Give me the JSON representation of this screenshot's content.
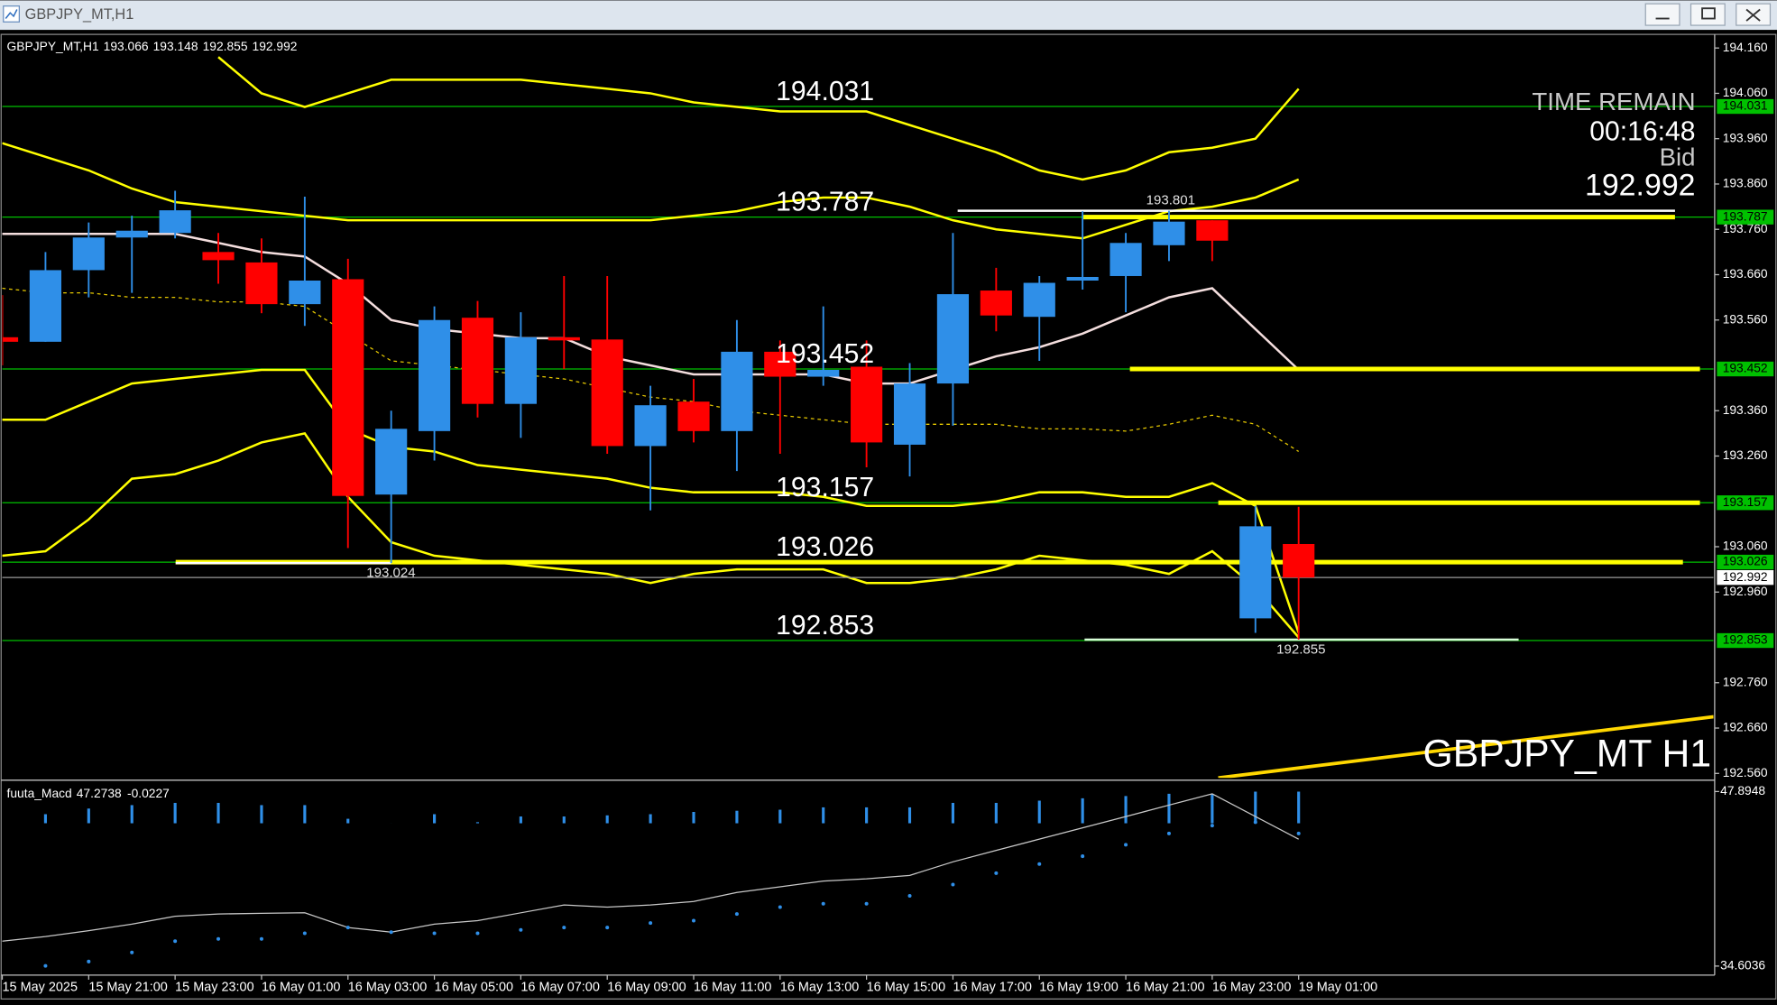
{
  "window": {
    "title": "GBPJPY_MT,H1"
  },
  "chart_data": {
    "type": "candlestick",
    "info": {
      "symbol": "GBPJPY_MT,H1",
      "open": 193.066,
      "high": 193.148,
      "low": 192.855,
      "close": 192.992
    },
    "categories": [
      "15 May 2025",
      null,
      "15 May 21:00",
      null,
      "15 May 23:00",
      null,
      "16 May 01:00",
      null,
      "16 May 03:00",
      null,
      "16 May 05:00",
      null,
      "16 May 07:00",
      null,
      "16 May 09:00",
      null,
      "16 May 11:00",
      null,
      "16 May 13:00",
      null,
      "16 May 15:00",
      null,
      "16 May 17:00",
      null,
      "16 May 19:00",
      null,
      "16 May 21:00",
      null,
      "16 May 23:00",
      null,
      "19 May 01:00"
    ],
    "open": [
      193.522,
      193.512,
      193.67,
      193.742,
      193.752,
      193.71,
      193.687,
      193.595,
      193.65,
      193.175,
      193.315,
      193.565,
      193.375,
      193.522,
      193.517,
      193.282,
      193.38,
      193.315,
      193.49,
      193.435,
      193.457,
      193.285,
      193.42,
      193.625,
      193.567,
      193.647,
      193.657,
      193.725,
      193.78,
      192.902,
      193.066
    ],
    "high": [
      193.615,
      193.71,
      193.775,
      193.79,
      193.845,
      193.752,
      193.74,
      193.832,
      193.695,
      193.36,
      193.59,
      193.602,
      193.577,
      193.657,
      193.657,
      193.415,
      193.43,
      193.56,
      193.515,
      193.59,
      193.515,
      193.465,
      193.752,
      193.675,
      193.657,
      193.8,
      193.752,
      193.801,
      193.78,
      193.15,
      193.148
    ],
    "low": [
      193.46,
      193.512,
      193.61,
      193.62,
      193.74,
      193.64,
      193.575,
      193.547,
      193.057,
      193.024,
      193.25,
      193.345,
      193.3,
      193.452,
      193.265,
      193.14,
      193.29,
      193.227,
      193.265,
      193.415,
      193.235,
      193.215,
      193.327,
      193.535,
      193.47,
      193.627,
      193.577,
      193.69,
      193.69,
      192.87,
      192.855
    ],
    "close": [
      193.512,
      193.67,
      193.742,
      193.757,
      193.802,
      193.692,
      193.595,
      193.647,
      193.172,
      193.32,
      193.56,
      193.375,
      193.522,
      193.515,
      193.282,
      193.372,
      193.315,
      193.49,
      193.435,
      193.45,
      193.29,
      193.42,
      193.617,
      193.57,
      193.642,
      193.655,
      193.73,
      193.777,
      193.735,
      193.105,
      192.992
    ],
    "up_color": "#2f8fe8",
    "down_color": "#ff0000",
    "ylim": [
      192.55,
      194.185
    ],
    "yticks": [
      {
        "value": 194.16,
        "label": "194.160"
      },
      {
        "value": 194.06,
        "label": "194.060"
      },
      {
        "value": 193.96,
        "label": "193.960"
      },
      {
        "value": 193.86,
        "label": "193.860"
      },
      {
        "value": 193.76,
        "label": "193.760"
      },
      {
        "value": 193.66,
        "label": "193.660"
      },
      {
        "value": 193.56,
        "label": "193.560"
      },
      {
        "value": 193.36,
        "label": "193.360"
      },
      {
        "value": 193.26,
        "label": "193.260"
      },
      {
        "value": 193.06,
        "label": "193.060"
      },
      {
        "value": 192.96,
        "label": "192.960"
      },
      {
        "value": 192.76,
        "label": "192.760"
      },
      {
        "value": 192.66,
        "label": "192.660"
      },
      {
        "value": 192.56,
        "label": "192.560"
      }
    ],
    "series": [
      {
        "color": "#ffff00",
        "values": [
          null,
          null,
          null,
          null,
          null,
          194.14,
          194.06,
          194.03,
          194.06,
          194.09,
          194.09,
          194.09,
          194.09,
          194.08,
          194.07,
          194.06,
          194.04,
          194.03,
          194.02,
          194.02,
          194.02,
          193.99,
          193.96,
          193.93,
          193.89,
          193.87,
          193.89,
          193.93,
          193.94,
          193.96,
          194.07
        ]
      },
      {
        "color": "#ffff00",
        "values": [
          193.95,
          193.92,
          193.89,
          193.85,
          193.82,
          193.81,
          193.8,
          193.79,
          193.78,
          193.78,
          193.78,
          193.78,
          193.78,
          193.78,
          193.78,
          193.78,
          193.79,
          193.8,
          193.82,
          193.83,
          193.83,
          193.81,
          193.78,
          193.76,
          193.75,
          193.74,
          193.77,
          193.8,
          193.81,
          193.83,
          193.87
        ]
      },
      {
        "color": "#ffff00",
        "values": [
          193.34,
          193.34,
          193.38,
          193.42,
          193.43,
          193.44,
          193.45,
          193.45,
          193.32,
          193.28,
          193.27,
          193.24,
          193.23,
          193.22,
          193.21,
          193.19,
          193.18,
          193.18,
          193.18,
          193.17,
          193.15,
          193.15,
          193.15,
          193.16,
          193.18,
          193.18,
          193.17,
          193.17,
          193.2,
          193.15,
          192.87
        ]
      },
      {
        "color": "#ffff00",
        "values": [
          193.04,
          193.05,
          193.12,
          193.21,
          193.22,
          193.25,
          193.29,
          193.31,
          193.17,
          193.07,
          193.04,
          193.03,
          193.02,
          193.01,
          193.0,
          192.98,
          193.0,
          193.01,
          193.01,
          193.01,
          192.98,
          192.98,
          192.99,
          193.01,
          193.04,
          193.03,
          193.02,
          193.0,
          193.05,
          192.97,
          192.86
        ]
      },
      {
        "color": "#f4dede",
        "values": [
          193.75,
          193.75,
          193.75,
          193.75,
          193.75,
          193.73,
          193.71,
          193.7,
          193.64,
          193.56,
          193.54,
          193.53,
          193.52,
          193.52,
          193.48,
          193.46,
          193.44,
          193.44,
          193.44,
          193.44,
          193.42,
          193.42,
          193.45,
          193.48,
          193.5,
          193.53,
          193.57,
          193.61,
          193.63,
          193.54,
          193.45
        ]
      },
      {
        "color": "#e6c800",
        "dashed": true,
        "values": [
          193.63,
          193.62,
          193.62,
          193.61,
          193.61,
          193.6,
          193.6,
          193.59,
          193.53,
          193.47,
          193.46,
          193.45,
          193.44,
          193.43,
          193.41,
          193.39,
          193.38,
          193.36,
          193.35,
          193.34,
          193.33,
          193.33,
          193.33,
          193.33,
          193.32,
          193.32,
          193.315,
          193.33,
          193.35,
          193.33,
          193.27
        ]
      }
    ],
    "levels": [
      194.031,
      193.787,
      193.452,
      193.157,
      193.026,
      192.853
    ],
    "level_color": "#00c000",
    "highlight_color": "#ffff00",
    "price_marks": [
      193.801,
      193.024,
      192.855
    ],
    "bid": 192.992,
    "trendline": {
      "color": "#ffd700",
      "values": [
        192.55,
        192.685
      ]
    },
    "timer": {
      "title": "TIME REMAIN",
      "time": "00:16:48",
      "label": "Bid",
      "price": 192.992
    },
    "watermark": "GBPJPY_MT H1",
    "macd": {
      "title": "fuuta_Macd",
      "value": 47.2738,
      "signal_value": -0.0227,
      "ylim": [
        34.6036,
        47.8948
      ],
      "yticks": [
        47.8948,
        34.6036
      ],
      "bar_color": "#2f8fe8",
      "histogram": [
        null,
        46.17,
        46.6,
        46.86,
        47.03,
        47.03,
        46.86,
        46.86,
        45.82,
        45.48,
        46.17,
        45.56,
        45.995,
        45.995,
        46.08,
        46.17,
        46.34,
        46.43,
        46.51,
        46.69,
        46.69,
        46.69,
        47.03,
        47.03,
        47.2,
        47.38,
        47.55,
        47.72,
        47.72,
        47.89,
        47.89
      ],
      "line": {
        "color": "#c8c8c8",
        "values": [
          36.5,
          36.85,
          37.3,
          37.8,
          38.4,
          38.57,
          38.62,
          38.66,
          37.54,
          37.19,
          37.8,
          38.06,
          38.66,
          39.26,
          39.09,
          39.26,
          39.52,
          40.21,
          40.64,
          41.08,
          41.25,
          41.51,
          42.54,
          43.41,
          44.27,
          45.13,
          45.99,
          46.86,
          47.72,
          45.99,
          44.27
        ]
      },
      "signal": {
        "color": "#2f8fe8",
        "values": [
          null,
          34.62,
          34.95,
          35.64,
          36.5,
          36.67,
          36.67,
          37.1,
          37.54,
          37.19,
          37.1,
          37.1,
          37.36,
          37.54,
          37.54,
          37.88,
          38.06,
          38.57,
          39.09,
          39.35,
          39.35,
          39.95,
          40.81,
          41.68,
          42.37,
          42.97,
          43.84,
          44.7,
          45.3,
          45.56,
          44.7
        ]
      }
    }
  }
}
